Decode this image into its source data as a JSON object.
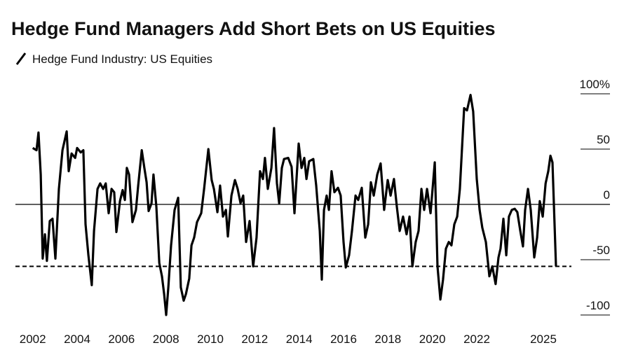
{
  "chart_data": {
    "type": "line",
    "title": "Hedge Fund Managers Add Short Bets on US Equities",
    "x": [
      2002.0,
      2002.17,
      2002.26,
      2002.36,
      2002.45,
      2002.55,
      2002.64,
      2002.77,
      2002.89,
      2003.02,
      2003.18,
      2003.34,
      2003.53,
      2003.62,
      2003.75,
      2003.91,
      2004.0,
      2004.16,
      2004.28,
      2004.38,
      2004.51,
      2004.66,
      2004.76,
      2004.92,
      2005.04,
      2005.17,
      2005.29,
      2005.42,
      2005.55,
      2005.67,
      2005.77,
      2005.93,
      2006.05,
      2006.15,
      2006.24,
      2006.34,
      2006.49,
      2006.65,
      2006.75,
      2006.91,
      2007.03,
      2007.13,
      2007.22,
      2007.35,
      2007.44,
      2007.57,
      2007.7,
      2007.82,
      2007.92,
      2008.01,
      2008.11,
      2008.23,
      2008.39,
      2008.55,
      2008.67,
      2008.8,
      2008.9,
      2009.05,
      2009.15,
      2009.27,
      2009.4,
      2009.59,
      2009.72,
      2009.91,
      2010.06,
      2010.16,
      2010.32,
      2010.44,
      2010.57,
      2010.7,
      2010.79,
      2010.95,
      2011.11,
      2011.23,
      2011.36,
      2011.48,
      2011.61,
      2011.77,
      2011.93,
      2012.08,
      2012.24,
      2012.37,
      2012.46,
      2012.59,
      2012.75,
      2012.87,
      2013.0,
      2013.1,
      2013.22,
      2013.32,
      2013.51,
      2013.66,
      2013.79,
      2013.98,
      2014.11,
      2014.23,
      2014.33,
      2014.45,
      2014.64,
      2014.77,
      2014.93,
      2015.02,
      2015.12,
      2015.24,
      2015.34,
      2015.46,
      2015.59,
      2015.75,
      2015.87,
      2016.0,
      2016.1,
      2016.25,
      2016.38,
      2016.54,
      2016.66,
      2016.82,
      2016.98,
      2017.11,
      2017.23,
      2017.36,
      2017.52,
      2017.67,
      2017.83,
      2017.99,
      2018.12,
      2018.27,
      2018.4,
      2018.53,
      2018.68,
      2018.84,
      2018.97,
      2019.1,
      2019.25,
      2019.38,
      2019.51,
      2019.63,
      2019.76,
      2019.92,
      2020.11,
      2020.23,
      2020.36,
      2020.48,
      2020.61,
      2020.74,
      2020.86,
      2020.99,
      2021.12,
      2021.24,
      2021.43,
      2021.56,
      2021.72,
      2021.84,
      2022.0,
      2022.13,
      2022.25,
      2022.41,
      2022.57,
      2022.7,
      2022.85,
      2022.98,
      2023.07,
      2023.2,
      2023.33,
      2023.45,
      2023.58,
      2023.71,
      2023.83,
      2023.96,
      2024.08,
      2024.18,
      2024.31,
      2024.43,
      2024.59,
      2024.72,
      2024.84,
      2024.97,
      2025.1,
      2025.22,
      2025.32,
      2025.41,
      2025.57
    ],
    "series": [
      {
        "name": "Hedge Fund Industry: US Equities",
        "color": "#000000",
        "values": [
          51,
          49,
          65,
          27,
          -49,
          -27,
          -51,
          -15,
          -13,
          -49,
          14,
          49,
          66,
          30,
          46,
          42,
          51,
          47,
          49,
          -18,
          -46,
          -73,
          -24,
          14,
          19,
          14,
          19,
          -8,
          14,
          11,
          -25,
          3,
          13,
          4,
          33,
          27,
          -16,
          -5,
          17,
          49,
          33,
          20,
          -6,
          1,
          27,
          -2,
          -53,
          -65,
          -81,
          -100,
          -75,
          -37,
          -5,
          6,
          -75,
          -87,
          -81,
          -67,
          -37,
          -30,
          -16,
          -8,
          14,
          50,
          22,
          14,
          -7,
          17,
          -11,
          -5,
          -29,
          8,
          22,
          14,
          1,
          8,
          -34,
          -15,
          -56,
          -30,
          30,
          23,
          42,
          14,
          33,
          69,
          19,
          1,
          33,
          41,
          42,
          34,
          -8,
          55,
          33,
          42,
          23,
          39,
          41,
          17,
          -24,
          -68,
          -5,
          8,
          -5,
          30,
          11,
          15,
          8,
          -34,
          -57,
          -46,
          -24,
          8,
          4,
          15,
          -30,
          -18,
          20,
          8,
          27,
          37,
          -5,
          22,
          8,
          23,
          -2,
          -24,
          -11,
          -27,
          -11,
          -56,
          -34,
          -24,
          14,
          -5,
          14,
          -8,
          38,
          -56,
          -86,
          -68,
          -40,
          -34,
          -37,
          -18,
          -11,
          14,
          87,
          85,
          99,
          84,
          23,
          -5,
          -21,
          -34,
          -65,
          -56,
          -72,
          -48,
          -40,
          -13,
          -46,
          -11,
          -5,
          -4,
          -7,
          -24,
          -38,
          -5,
          14,
          -5,
          -48,
          -30,
          3,
          -11,
          19,
          30,
          44,
          38,
          -56
        ]
      }
    ],
    "hline": -56,
    "xlim": [
      2001,
      2028
    ],
    "xticks": [
      2002,
      2004,
      2006,
      2008,
      2010,
      2012,
      2014,
      2016,
      2018,
      2020,
      2022,
      2025
    ],
    "ylim": [
      -100,
      100
    ],
    "yticks": [
      {
        "value": 100,
        "label": "100%"
      },
      50,
      0,
      -50,
      -100
    ]
  }
}
